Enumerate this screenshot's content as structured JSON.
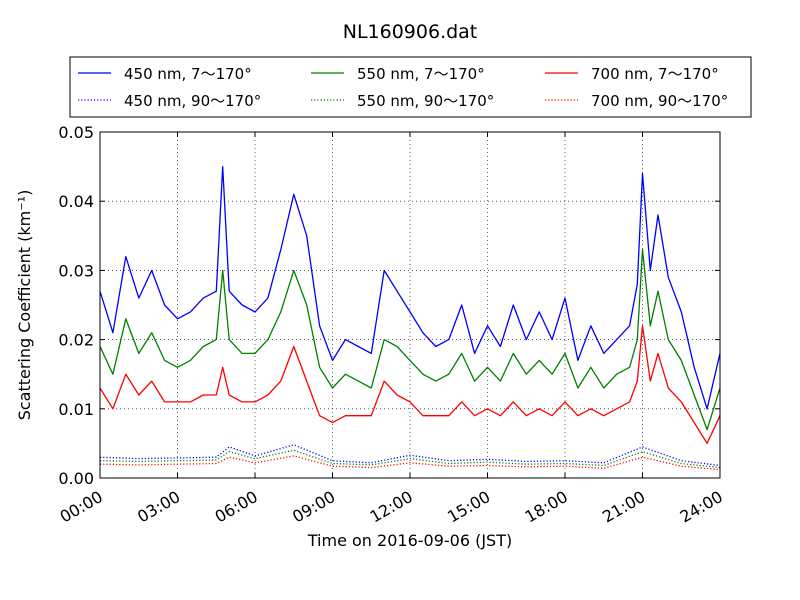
{
  "chart_data": {
    "type": "line",
    "title": "NL160906.dat",
    "xlabel": "Time on 2016-09-06 (JST)",
    "ylabel": "Scattering Coefficient (km⁻¹)",
    "xlim": [
      0,
      24
    ],
    "ylim": [
      0,
      0.05
    ],
    "grid": true,
    "legend_position": "top",
    "x_ticks": [
      "00:00",
      "03:00",
      "06:00",
      "09:00",
      "12:00",
      "15:00",
      "18:00",
      "21:00",
      "24:00"
    ],
    "y_ticks": [
      "0.00",
      "0.01",
      "0.02",
      "0.03",
      "0.04",
      "0.05"
    ],
    "series": [
      {
        "name": "450 nm, 7～170°",
        "color": "#0000ff",
        "style": "solid",
        "x": [
          0,
          0.5,
          1.0,
          1.5,
          2.0,
          2.5,
          3.0,
          3.5,
          4.0,
          4.5,
          4.75,
          5.0,
          5.5,
          6.0,
          6.5,
          7.0,
          7.5,
          8.0,
          8.5,
          9.0,
          9.5,
          10.0,
          10.5,
          11.0,
          11.5,
          12.0,
          12.5,
          13.0,
          13.5,
          14.0,
          14.5,
          15.0,
          15.5,
          16.0,
          16.5,
          17.0,
          17.5,
          18.0,
          18.5,
          19.0,
          19.5,
          20.0,
          20.5,
          20.8,
          21.0,
          21.3,
          21.6,
          22.0,
          22.5,
          23.0,
          23.5,
          24.0
        ],
        "y": [
          0.027,
          0.021,
          0.032,
          0.026,
          0.03,
          0.025,
          0.023,
          0.024,
          0.026,
          0.027,
          0.045,
          0.027,
          0.025,
          0.024,
          0.026,
          0.033,
          0.041,
          0.035,
          0.022,
          0.017,
          0.02,
          0.019,
          0.018,
          0.03,
          0.027,
          0.024,
          0.021,
          0.019,
          0.02,
          0.025,
          0.018,
          0.022,
          0.019,
          0.025,
          0.02,
          0.024,
          0.02,
          0.026,
          0.017,
          0.022,
          0.018,
          0.02,
          0.022,
          0.028,
          0.044,
          0.03,
          0.038,
          0.029,
          0.024,
          0.016,
          0.01,
          0.018
        ]
      },
      {
        "name": "450 nm, 90～170°",
        "color": "#0000ff",
        "style": "dotted",
        "x": [
          0,
          1.5,
          3.0,
          4.5,
          5.0,
          6.0,
          7.5,
          9.0,
          10.5,
          12.0,
          13.5,
          15.0,
          16.5,
          18.0,
          19.5,
          21.0,
          22.5,
          24.0
        ],
        "y": [
          0.003,
          0.0028,
          0.0029,
          0.003,
          0.0045,
          0.0032,
          0.0048,
          0.0025,
          0.0022,
          0.0033,
          0.0025,
          0.0027,
          0.0024,
          0.0025,
          0.0022,
          0.0045,
          0.0025,
          0.0018
        ]
      },
      {
        "name": "550 nm, 7～170°",
        "color": "#008000",
        "style": "solid",
        "x": [
          0,
          0.5,
          1.0,
          1.5,
          2.0,
          2.5,
          3.0,
          3.5,
          4.0,
          4.5,
          4.75,
          5.0,
          5.5,
          6.0,
          6.5,
          7.0,
          7.5,
          8.0,
          8.5,
          9.0,
          9.5,
          10.0,
          10.5,
          11.0,
          11.5,
          12.0,
          12.5,
          13.0,
          13.5,
          14.0,
          14.5,
          15.0,
          15.5,
          16.0,
          16.5,
          17.0,
          17.5,
          18.0,
          18.5,
          19.0,
          19.5,
          20.0,
          20.5,
          20.8,
          21.0,
          21.3,
          21.6,
          22.0,
          22.5,
          23.0,
          23.5,
          24.0
        ],
        "y": [
          0.019,
          0.015,
          0.023,
          0.018,
          0.021,
          0.017,
          0.016,
          0.017,
          0.019,
          0.02,
          0.03,
          0.02,
          0.018,
          0.018,
          0.02,
          0.024,
          0.03,
          0.025,
          0.016,
          0.013,
          0.015,
          0.014,
          0.013,
          0.02,
          0.019,
          0.017,
          0.015,
          0.014,
          0.015,
          0.018,
          0.014,
          0.016,
          0.014,
          0.018,
          0.015,
          0.017,
          0.015,
          0.018,
          0.013,
          0.016,
          0.013,
          0.015,
          0.016,
          0.02,
          0.033,
          0.022,
          0.027,
          0.02,
          0.017,
          0.012,
          0.007,
          0.013
        ]
      },
      {
        "name": "550 nm, 90～170°",
        "color": "#008000",
        "style": "dotted",
        "x": [
          0,
          1.5,
          3.0,
          4.5,
          5.0,
          6.0,
          7.5,
          9.0,
          10.5,
          12.0,
          13.5,
          15.0,
          16.5,
          18.0,
          19.5,
          21.0,
          22.5,
          24.0
        ],
        "y": [
          0.0025,
          0.0024,
          0.0025,
          0.0026,
          0.0038,
          0.0028,
          0.004,
          0.0021,
          0.0019,
          0.0028,
          0.0021,
          0.0023,
          0.002,
          0.0021,
          0.0018,
          0.0038,
          0.0021,
          0.0015
        ]
      },
      {
        "name": "700 nm, 7～170°",
        "color": "#ff0000",
        "style": "solid",
        "x": [
          0,
          0.5,
          1.0,
          1.5,
          2.0,
          2.5,
          3.0,
          3.5,
          4.0,
          4.5,
          4.75,
          5.0,
          5.5,
          6.0,
          6.5,
          7.0,
          7.5,
          8.0,
          8.5,
          9.0,
          9.5,
          10.0,
          10.5,
          11.0,
          11.5,
          12.0,
          12.5,
          13.0,
          13.5,
          14.0,
          14.5,
          15.0,
          15.5,
          16.0,
          16.5,
          17.0,
          17.5,
          18.0,
          18.5,
          19.0,
          19.5,
          20.0,
          20.5,
          20.8,
          21.0,
          21.3,
          21.6,
          22.0,
          22.5,
          23.0,
          23.5,
          24.0
        ],
        "y": [
          0.013,
          0.01,
          0.015,
          0.012,
          0.014,
          0.011,
          0.011,
          0.011,
          0.012,
          0.012,
          0.016,
          0.012,
          0.011,
          0.011,
          0.012,
          0.014,
          0.019,
          0.014,
          0.009,
          0.008,
          0.009,
          0.009,
          0.009,
          0.014,
          0.012,
          0.011,
          0.009,
          0.009,
          0.009,
          0.011,
          0.009,
          0.01,
          0.009,
          0.011,
          0.009,
          0.01,
          0.009,
          0.011,
          0.009,
          0.01,
          0.009,
          0.01,
          0.011,
          0.014,
          0.022,
          0.014,
          0.018,
          0.013,
          0.011,
          0.008,
          0.005,
          0.009
        ]
      },
      {
        "name": "700 nm, 90～170°",
        "color": "#ff0000",
        "style": "dotted",
        "x": [
          0,
          1.5,
          3.0,
          4.5,
          5.0,
          6.0,
          7.5,
          9.0,
          10.5,
          12.0,
          13.5,
          15.0,
          16.5,
          18.0,
          19.5,
          21.0,
          22.5,
          24.0
        ],
        "y": [
          0.002,
          0.0019,
          0.002,
          0.0021,
          0.003,
          0.0022,
          0.0032,
          0.0017,
          0.0015,
          0.0022,
          0.0017,
          0.0018,
          0.0016,
          0.0017,
          0.0014,
          0.003,
          0.0017,
          0.0012
        ]
      }
    ]
  }
}
